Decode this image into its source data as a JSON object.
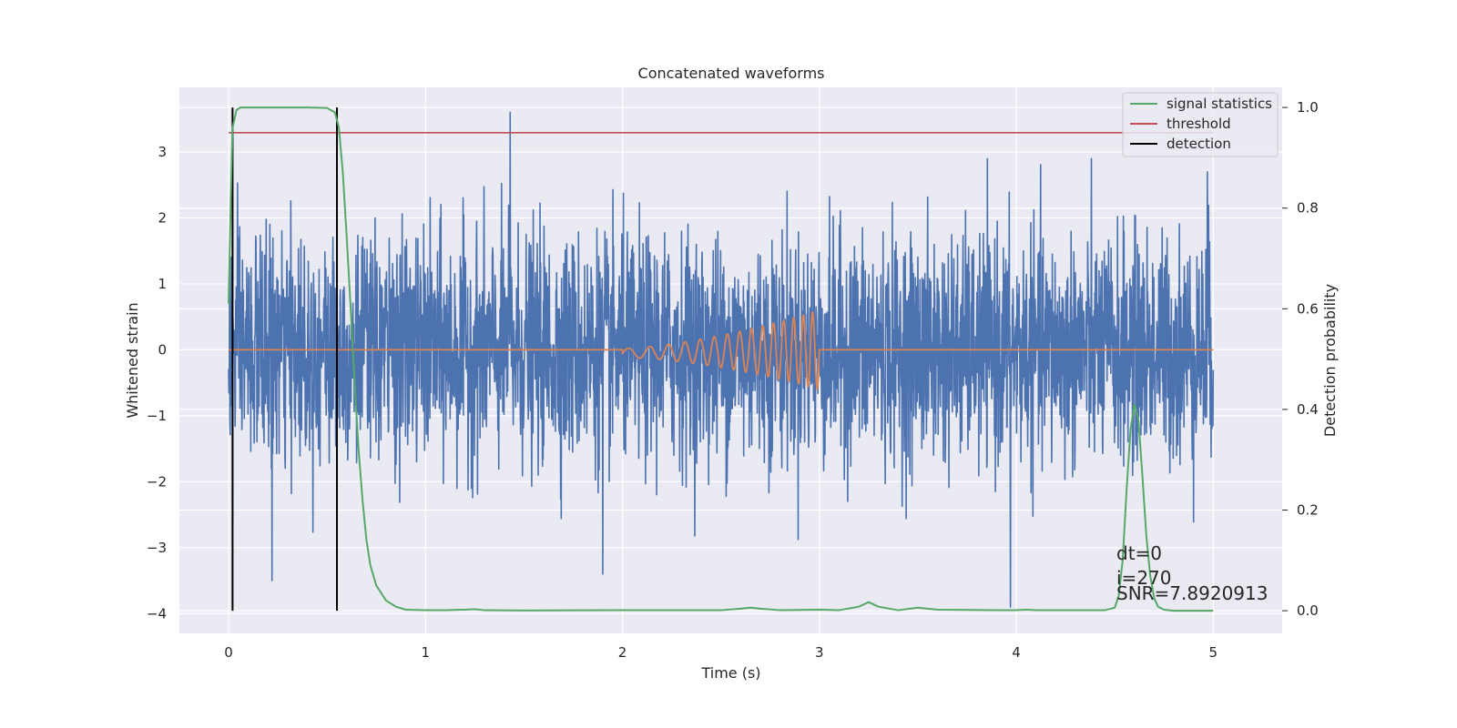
{
  "chart_data": {
    "type": "line",
    "title": "Concatenated waveforms",
    "xlabel": "Time (s)",
    "ylabel": "Whitened strain",
    "y2label": "Detection probability",
    "xlim": [
      -0.25,
      5.35
    ],
    "ylim": [
      -4.3,
      3.98
    ],
    "y2lim": [
      -0.045,
      1.04
    ],
    "xticks": [
      0,
      1,
      2,
      3,
      4,
      5
    ],
    "yticks": [
      -4,
      -3,
      -2,
      -1,
      0,
      1,
      2,
      3
    ],
    "y2ticks": [
      0.0,
      0.2,
      0.4,
      0.6,
      0.8,
      1.0
    ],
    "grid": true,
    "legend_position": "top-right",
    "series": [
      {
        "name": "",
        "axis": "left",
        "color": "#4c72b0",
        "description": "whitened noisy strain, Gaussian noise sampled over 0–5 s",
        "x_range": [
          0,
          5
        ],
        "envelope_y": [
          -2.6,
          2.6
        ],
        "peak_points": [
          [
            0.02,
            -2.6
          ],
          [
            0.22,
            -3.5
          ],
          [
            1.43,
            3.6
          ],
          [
            1.9,
            -3.4
          ],
          [
            3.97,
            -3.9
          ],
          [
            4.97,
            2.7
          ]
        ]
      },
      {
        "name": "",
        "axis": "left",
        "color": "#dd8452",
        "description": "injected chirp waveform",
        "chirp": {
          "t_start": 2.0,
          "t_end": 3.0,
          "f_start": 8,
          "f_end": 22,
          "amp_start": 0.07,
          "amp_end": 0.6
        }
      },
      {
        "name": "signal statistics",
        "axis": "right",
        "color": "#55a868",
        "x": [
          0,
          0.01,
          0.02,
          0.04,
          0.06,
          0.1,
          0.2,
          0.3,
          0.4,
          0.5,
          0.54,
          0.56,
          0.58,
          0.6,
          0.62,
          0.64,
          0.66,
          0.68,
          0.7,
          0.72,
          0.75,
          0.8,
          0.85,
          0.9,
          1.0,
          1.1,
          1.2,
          1.25,
          1.3,
          1.5,
          2.0,
          2.5,
          2.6,
          2.65,
          2.7,
          2.8,
          3.0,
          3.1,
          3.2,
          3.25,
          3.3,
          3.4,
          3.5,
          3.6,
          3.9,
          4.0,
          4.05,
          4.1,
          4.3,
          4.45,
          4.5,
          4.52,
          4.54,
          4.56,
          4.58,
          4.6,
          4.62,
          4.64,
          4.66,
          4.68,
          4.7,
          4.72,
          4.75,
          4.8,
          5.0
        ],
        "y": [
          0.61,
          0.8,
          0.96,
          0.995,
          1.0,
          1.0,
          1.0,
          1.0,
          1.0,
          0.999,
          0.99,
          0.96,
          0.87,
          0.74,
          0.6,
          0.45,
          0.32,
          0.22,
          0.14,
          0.09,
          0.05,
          0.02,
          0.008,
          0.002,
          0.001,
          0.001,
          0.002,
          0.003,
          0.001,
          0.0005,
          0.001,
          0.001,
          0.004,
          0.006,
          0.004,
          0.001,
          0.002,
          0.001,
          0.008,
          0.017,
          0.008,
          0.001,
          0.006,
          0.002,
          0.001,
          0.001,
          0.002,
          0.001,
          0.001,
          0.001,
          0.006,
          0.03,
          0.1,
          0.24,
          0.36,
          0.41,
          0.38,
          0.27,
          0.15,
          0.07,
          0.025,
          0.008,
          0.002,
          0.0,
          0.0
        ]
      },
      {
        "name": "threshold",
        "axis": "right",
        "color": "#c44e52",
        "x": [
          0,
          5
        ],
        "y": [
          0.95,
          0.95
        ]
      },
      {
        "name": "detection",
        "axis": "right",
        "color": "#000000",
        "vlines": [
          0.02,
          0.55
        ]
      }
    ],
    "annotations": [
      "dt=0",
      "i=270",
      "SNR=7.8920913"
    ]
  }
}
